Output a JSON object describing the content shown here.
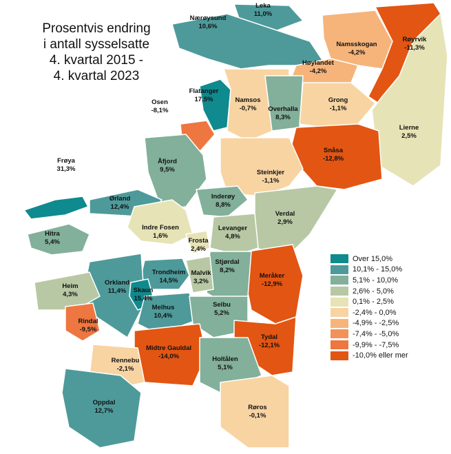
{
  "title_lines": [
    "Prosentvis endring",
    "i antall sysselsatte",
    "4. kvartal 2015 -",
    "4. kvartal 2023"
  ],
  "legend": [
    {
      "label": "Over 15,0%",
      "color": "#0f8a8e"
    },
    {
      "label": "10,1% - 15,0%",
      "color": "#4e9a9a"
    },
    {
      "label": "5,1% - 10,0%",
      "color": "#82b09a"
    },
    {
      "label": "2,6% - 5,0%",
      "color": "#b8c8a4"
    },
    {
      "label": "0,1% - 2,5%",
      "color": "#e6e3b6"
    },
    {
      "label": "-2,4% - 0,0%",
      "color": "#f8d4a2"
    },
    {
      "label": "-4,9% - -2,5%",
      "color": "#f6b47a"
    },
    {
      "label": "-7,4% - -5,0%",
      "color": "#f29258"
    },
    {
      "label": "-9,9% - -7,5%",
      "color": "#ee7640"
    },
    {
      "label": "-10,0% eller mer",
      "color": "#e35512"
    }
  ],
  "municipalities": [
    {
      "name": "Leka",
      "value": "11,0%",
      "value_num": 11.0
    },
    {
      "name": "Nærøysund",
      "value": "10,6%",
      "value_num": 10.6
    },
    {
      "name": "Namsskogan",
      "value": "-4,2%",
      "value_num": -4.2
    },
    {
      "name": "Røyrvik",
      "value": "-11,3%",
      "value_num": -11.3
    },
    {
      "name": "Høylandet",
      "value": "-4,2%",
      "value_num": -4.2
    },
    {
      "name": "Flatanger",
      "value": "17,5%",
      "value_num": 17.5
    },
    {
      "name": "Osen",
      "value": "-8,1%",
      "value_num": -8.1
    },
    {
      "name": "Namsos",
      "value": "-0,7%",
      "value_num": -0.7
    },
    {
      "name": "Grong",
      "value": "-1,1%",
      "value_num": -1.1
    },
    {
      "name": "Overhalla",
      "value": "8,3%",
      "value_num": 8.3
    },
    {
      "name": "Lierne",
      "value": "2,5%",
      "value_num": 2.5
    },
    {
      "name": "Snåsa",
      "value": "-12,8%",
      "value_num": -12.8
    },
    {
      "name": "Åfjord",
      "value": "9,5%",
      "value_num": 9.5
    },
    {
      "name": "Frøya",
      "value": "31,3%",
      "value_num": 31.3
    },
    {
      "name": "Steinkjer",
      "value": "-1,1%",
      "value_num": -1.1
    },
    {
      "name": "Ørland",
      "value": "12,4%",
      "value_num": 12.4
    },
    {
      "name": "Inderøy",
      "value": "8,8%",
      "value_num": 8.8
    },
    {
      "name": "Verdal",
      "value": "2,9%",
      "value_num": 2.9
    },
    {
      "name": "Indre Fosen",
      "value": "1,6%",
      "value_num": 1.6
    },
    {
      "name": "Levanger",
      "value": "4,8%",
      "value_num": 4.8
    },
    {
      "name": "Hitra",
      "value": "5,4%",
      "value_num": 5.4
    },
    {
      "name": "Frosta",
      "value": "2,4%",
      "value_num": 2.4
    },
    {
      "name": "Meråker",
      "value": "-12,9%",
      "value_num": -12.9
    },
    {
      "name": "Stjørdal",
      "value": "8,2%",
      "value_num": 8.2
    },
    {
      "name": "Trondheim",
      "value": "14,5%",
      "value_num": 14.5
    },
    {
      "name": "Malvik",
      "value": "3,2%",
      "value_num": 3.2
    },
    {
      "name": "Orkland",
      "value": "11,4%",
      "value_num": 11.4
    },
    {
      "name": "Skaun",
      "value": "15,4%",
      "value_num": 15.4
    },
    {
      "name": "Heim",
      "value": "4,3%",
      "value_num": 4.3
    },
    {
      "name": "Melhus",
      "value": "10,4%",
      "value_num": 10.4
    },
    {
      "name": "Selbu",
      "value": "5,2%",
      "value_num": 5.2
    },
    {
      "name": "Rindal",
      "value": "-9,5%",
      "value_num": -9.5
    },
    {
      "name": "Tydal",
      "value": "-12,1%",
      "value_num": -12.1
    },
    {
      "name": "Midtre Gauldal",
      "value": "-14,0%",
      "value_num": -14.0
    },
    {
      "name": "Rennebu",
      "value": "-2,1%",
      "value_num": -2.1
    },
    {
      "name": "Holtålen",
      "value": "5,1%",
      "value_num": 5.1
    },
    {
      "name": "Oppdal",
      "value": "12,7%",
      "value_num": 12.7
    },
    {
      "name": "Røros",
      "value": "-0,1%",
      "value_num": -0.1
    }
  ]
}
